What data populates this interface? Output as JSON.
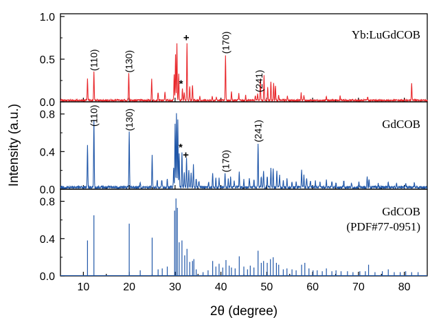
{
  "chart_data": {
    "type": "line",
    "xlabel": "2θ (degree)",
    "ylabel": "Intensity (a.u.)",
    "xlim": [
      5,
      85
    ],
    "x_ticks": [
      "10",
      "20",
      "30",
      "40",
      "50",
      "60",
      "70",
      "80"
    ],
    "grid": false,
    "panels": [
      {
        "name": "Yb:LuGdCOB",
        "color": "#e8262a",
        "ylim": [
          0,
          1.0
        ],
        "y_ticks": [
          "0.0",
          "0.5",
          "1.0"
        ],
        "peaks": [
          [
            10.9,
            0.25
          ],
          [
            12.3,
            0.33
          ],
          [
            19.9,
            0.31
          ],
          [
            24.9,
            0.25
          ],
          [
            26.3,
            0.1
          ],
          [
            27.8,
            0.1
          ],
          [
            29.8,
            0.3
          ],
          [
            30.1,
            0.55
          ],
          [
            30.4,
            0.66
          ],
          [
            30.8,
            0.31
          ],
          [
            31.6,
            0.14
          ],
          [
            32.0,
            0.1
          ],
          [
            32.6,
            0.68
          ],
          [
            33.2,
            0.16
          ],
          [
            33.8,
            0.18
          ],
          [
            35.4,
            0.05
          ],
          [
            38.1,
            0.05
          ],
          [
            39.0,
            0.04
          ],
          [
            41.0,
            0.53
          ],
          [
            42.3,
            0.1
          ],
          [
            43.9,
            0.08
          ],
          [
            45.4,
            0.06
          ],
          [
            47.5,
            0.06
          ],
          [
            48.0,
            0.08
          ],
          [
            48.6,
            0.25
          ],
          [
            49.4,
            0.3
          ],
          [
            50.2,
            0.15
          ],
          [
            50.9,
            0.22
          ],
          [
            51.5,
            0.2
          ],
          [
            51.9,
            0.18
          ],
          [
            52.6,
            0.06
          ],
          [
            54.5,
            0.05
          ],
          [
            57.5,
            0.09
          ],
          [
            58.1,
            0.06
          ],
          [
            63.0,
            0.04
          ],
          [
            66.0,
            0.05
          ],
          [
            72.0,
            0.04
          ],
          [
            81.6,
            0.21
          ]
        ],
        "annotations": [
          {
            "text": "(110)",
            "x": 12.3
          },
          {
            "text": "(130)",
            "x": 19.9
          },
          {
            "text": "(170)",
            "x": 41.0
          },
          {
            "text": "(241)",
            "x": 48.3
          },
          {
            "text": "*",
            "x": 31.6
          },
          {
            "text": "+",
            "x": 32.6
          }
        ]
      },
      {
        "name": "GdCOB",
        "color": "#1f56a8",
        "ylim": [
          0,
          0.9
        ],
        "y_ticks": [
          "0.0",
          "0.4",
          "0.8"
        ],
        "peaks": [
          [
            10.9,
            0.44
          ],
          [
            12.3,
            0.73
          ],
          [
            20.0,
            0.59
          ],
          [
            22.4,
            0.06
          ],
          [
            25.0,
            0.35
          ],
          [
            26.1,
            0.08
          ],
          [
            27.1,
            0.08
          ],
          [
            28.3,
            0.09
          ],
          [
            29.7,
            0.22
          ],
          [
            30.0,
            0.68
          ],
          [
            30.3,
            0.79
          ],
          [
            30.6,
            0.72
          ],
          [
            30.9,
            0.35
          ],
          [
            31.5,
            0.38
          ],
          [
            32.0,
            0.16
          ],
          [
            32.5,
            0.3
          ],
          [
            33.0,
            0.18
          ],
          [
            33.5,
            0.15
          ],
          [
            34.0,
            0.24
          ],
          [
            34.6,
            0.1
          ],
          [
            35.2,
            0.06
          ],
          [
            37.3,
            0.06
          ],
          [
            38.2,
            0.14
          ],
          [
            38.9,
            0.1
          ],
          [
            39.6,
            0.09
          ],
          [
            40.9,
            0.15
          ],
          [
            41.6,
            0.09
          ],
          [
            42.1,
            0.1
          ],
          [
            42.9,
            0.07
          ],
          [
            44.0,
            0.16
          ],
          [
            45.0,
            0.08
          ],
          [
            46.2,
            0.1
          ],
          [
            47.2,
            0.08
          ],
          [
            48.1,
            0.47
          ],
          [
            48.8,
            0.12
          ],
          [
            49.3,
            0.18
          ],
          [
            50.1,
            0.12
          ],
          [
            50.9,
            0.2
          ],
          [
            51.4,
            0.2
          ],
          [
            52.2,
            0.17
          ],
          [
            52.8,
            0.12
          ],
          [
            53.6,
            0.07
          ],
          [
            54.4,
            0.09
          ],
          [
            55.5,
            0.06
          ],
          [
            56.4,
            0.06
          ],
          [
            57.6,
            0.19
          ],
          [
            58.1,
            0.13
          ],
          [
            58.7,
            0.1
          ],
          [
            59.5,
            0.07
          ],
          [
            60.6,
            0.06
          ],
          [
            61.6,
            0.05
          ],
          [
            63.0,
            0.08
          ],
          [
            64.2,
            0.07
          ],
          [
            65.1,
            0.05
          ],
          [
            66.8,
            0.07
          ],
          [
            68.5,
            0.05
          ],
          [
            70.1,
            0.05
          ],
          [
            71.9,
            0.12
          ],
          [
            72.3,
            0.08
          ],
          [
            74.3,
            0.04
          ],
          [
            76.5,
            0.06
          ],
          [
            78.3,
            0.05
          ],
          [
            80.3,
            0.05
          ],
          [
            82.2,
            0.05
          ]
        ],
        "annotations": [
          {
            "text": "(110)",
            "x": 12.3
          },
          {
            "text": "(130)",
            "x": 20.0
          },
          {
            "text": "(170)",
            "x": 41.0
          },
          {
            "text": "(241)",
            "x": 48.1
          },
          {
            "text": "*",
            "x": 31.5
          },
          {
            "text": "+",
            "x": 32.5
          }
        ]
      },
      {
        "name": "GdCOB\n(PDF#77-0951)",
        "color": "#1f56a8",
        "ylim": [
          0,
          0.9
        ],
        "y_ticks": [
          "0.0",
          "0.4",
          "0.8"
        ],
        "peaks": [
          [
            10.9,
            0.38
          ],
          [
            12.3,
            0.65
          ],
          [
            20.0,
            0.56
          ],
          [
            22.4,
            0.06
          ],
          [
            25.0,
            0.41
          ],
          [
            26.3,
            0.07
          ],
          [
            27.2,
            0.08
          ],
          [
            28.3,
            0.1
          ],
          [
            29.9,
            0.7
          ],
          [
            30.2,
            0.83
          ],
          [
            30.5,
            0.73
          ],
          [
            30.9,
            0.36
          ],
          [
            31.5,
            0.38
          ],
          [
            32.1,
            0.22
          ],
          [
            32.6,
            0.29
          ],
          [
            33.2,
            0.15
          ],
          [
            33.8,
            0.16
          ],
          [
            34.1,
            0.18
          ],
          [
            34.6,
            0.07
          ],
          [
            36.1,
            0.04
          ],
          [
            37.2,
            0.06
          ],
          [
            38.2,
            0.16
          ],
          [
            38.9,
            0.1
          ],
          [
            39.6,
            0.13
          ],
          [
            40.4,
            0.09
          ],
          [
            41.1,
            0.17
          ],
          [
            41.8,
            0.11
          ],
          [
            42.3,
            0.09
          ],
          [
            43.1,
            0.08
          ],
          [
            44.0,
            0.21
          ],
          [
            45.0,
            0.1
          ],
          [
            45.8,
            0.07
          ],
          [
            46.4,
            0.11
          ],
          [
            47.2,
            0.09
          ],
          [
            48.1,
            0.27
          ],
          [
            48.8,
            0.14
          ],
          [
            49.3,
            0.16
          ],
          [
            50.1,
            0.14
          ],
          [
            50.8,
            0.18
          ],
          [
            51.4,
            0.2
          ],
          [
            52.1,
            0.14
          ],
          [
            52.6,
            0.12
          ],
          [
            53.6,
            0.07
          ],
          [
            54.4,
            0.08
          ],
          [
            55.5,
            0.07
          ],
          [
            56.4,
            0.06
          ],
          [
            57.6,
            0.12
          ],
          [
            58.3,
            0.14
          ],
          [
            59.2,
            0.08
          ],
          [
            60.1,
            0.06
          ],
          [
            61.0,
            0.06
          ],
          [
            62.1,
            0.05
          ],
          [
            63.0,
            0.08
          ],
          [
            64.2,
            0.05
          ],
          [
            65.1,
            0.06
          ],
          [
            66.2,
            0.05
          ],
          [
            67.6,
            0.05
          ],
          [
            68.8,
            0.04
          ],
          [
            70.3,
            0.05
          ],
          [
            71.5,
            0.05
          ],
          [
            72.2,
            0.12
          ],
          [
            73.6,
            0.04
          ],
          [
            75.2,
            0.05
          ],
          [
            76.5,
            0.07
          ],
          [
            77.8,
            0.04
          ],
          [
            79.1,
            0.04
          ],
          [
            80.3,
            0.05
          ],
          [
            81.6,
            0.04
          ],
          [
            83.0,
            0.04
          ]
        ],
        "annotations": []
      }
    ]
  }
}
